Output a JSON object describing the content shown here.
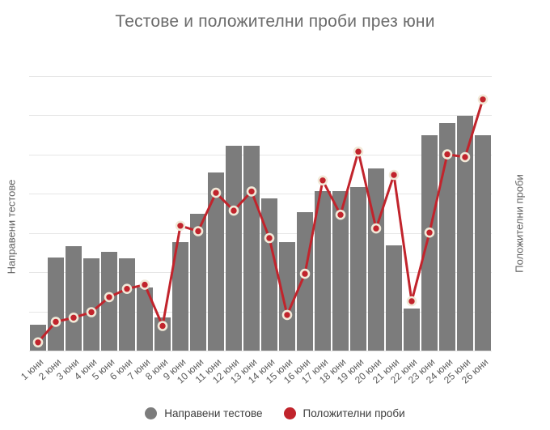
{
  "chart_data": {
    "type": "combo",
    "title": "Тестове и положителни проби през юни",
    "ylabel_left": "Направени тестове",
    "ylabel_right": "Положителни проби",
    "xlabel": "",
    "legend_position": "bottom",
    "grid": {
      "horizontal_lines": 8,
      "vertical_lines": 0,
      "color": "#e6e6e6"
    },
    "axis_note": "neither value axis shows numeric tick labels; series values are estimated as percent of plot height (0-100)",
    "ylim_pct": [
      0,
      100
    ],
    "categories": [
      "1 юни",
      "2 юни",
      "3 юни",
      "4 юни",
      "5 юни",
      "6 юни",
      "7 юни",
      "8 юни",
      "9 юни",
      "10 юни",
      "11 юни",
      "12 юни",
      "13 юни",
      "14 юни",
      "15 юни",
      "16 юни",
      "17 юни",
      "18 юни",
      "19 юни",
      "20 юни",
      "21 юни",
      "22 юни",
      "23 юни",
      "24 юни",
      "25 юни",
      "26 юни"
    ],
    "series": [
      {
        "name": "Направени тестове",
        "type": "bar",
        "yaxis": "left",
        "color": "#7c7c7c",
        "values_pct": [
          9.5,
          34,
          38,
          33.5,
          36,
          33.5,
          23,
          12,
          39.5,
          50,
          65,
          74.5,
          74.5,
          55.5,
          39.5,
          50.5,
          58,
          58,
          59.5,
          66.5,
          38.5,
          15.5,
          78.5,
          83,
          85.5,
          78.5
        ]
      },
      {
        "name": "Положителни проби",
        "type": "line",
        "yaxis": "right",
        "color": "#c1242c",
        "marker_fill": "#c1242c",
        "marker_halo": "#f1e9d8",
        "values_pct": [
          3,
          10.5,
          12,
          14,
          19.5,
          22.5,
          24,
          9,
          45.5,
          43.5,
          57.5,
          51,
          58,
          41,
          13,
          28,
          62,
          49.5,
          72.5,
          44.5,
          64,
          18,
          43,
          71.5,
          70.5,
          91.5
        ]
      }
    ]
  },
  "legend": [
    {
      "label": "Направени тестове",
      "color": "#7c7c7c"
    },
    {
      "label": "Положителни проби",
      "color": "#c1242c"
    }
  ],
  "colors": {
    "background": "#ffffff",
    "title_text": "#6b6b6b",
    "axis_text": "#5c5c5c",
    "legend_text": "#3d3d3d",
    "gridline": "#e6e6e6"
  }
}
